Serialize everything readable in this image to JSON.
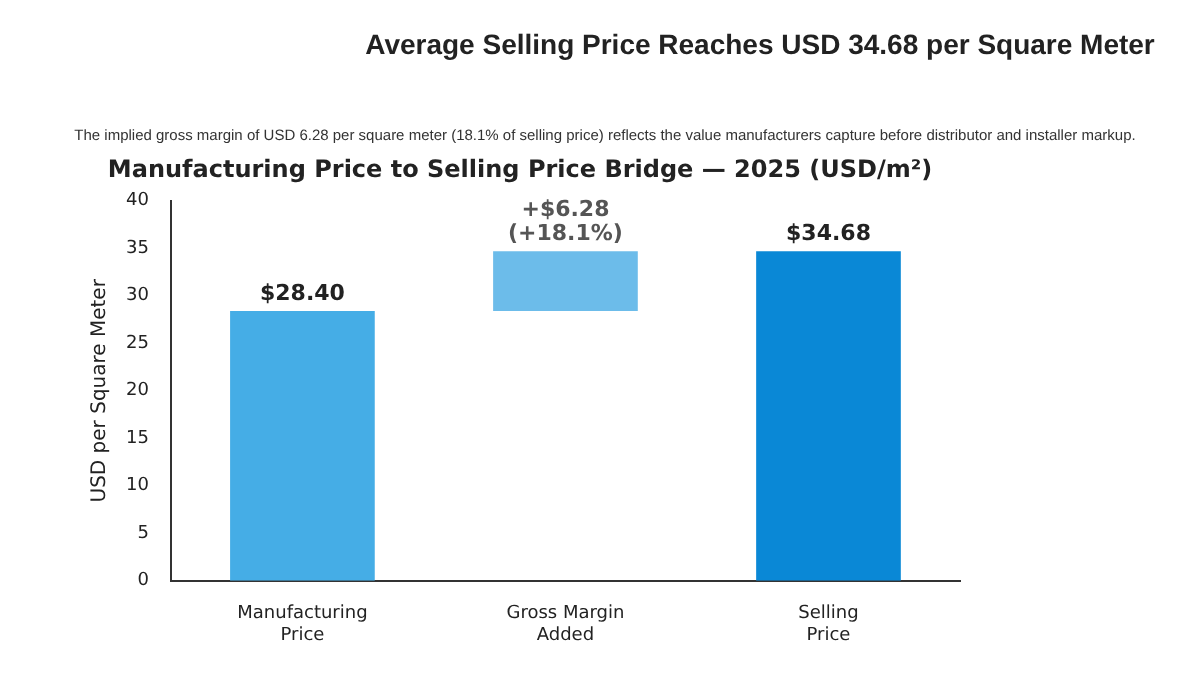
{
  "chart_data": {
    "type": "bar",
    "title": "Average Selling Price Reaches USD 34.68 per Square Meter",
    "subtitle": "Manufacturing Price to Selling Price Bridge — 2025 (USD/m²)",
    "annotations": [
      "The implied gross margin of USD 6.28 per square meter (18.1% of selling price) reflects the value manufacturers capture before distributor and installer markup."
    ],
    "ylabel": "USD per Square Meter",
    "categories": [
      "Manufacturing Price",
      "Gross Margin Added",
      "Selling Price"
    ],
    "values": [
      28.4,
      6.28,
      34.68
    ],
    "base": [
      0,
      28.4,
      0
    ],
    "colors": [
      "#45ade6",
      "#6cbcea",
      "#0a88d6"
    ],
    "value_labels": [
      "$28.40",
      "+$6.28 (+18.1%)",
      "$34.68"
    ],
    "ylim": [
      0,
      40
    ],
    "yticks": [
      0,
      5,
      10,
      15,
      20,
      25,
      30,
      35,
      40
    ],
    "grid": false,
    "legend": false
  }
}
